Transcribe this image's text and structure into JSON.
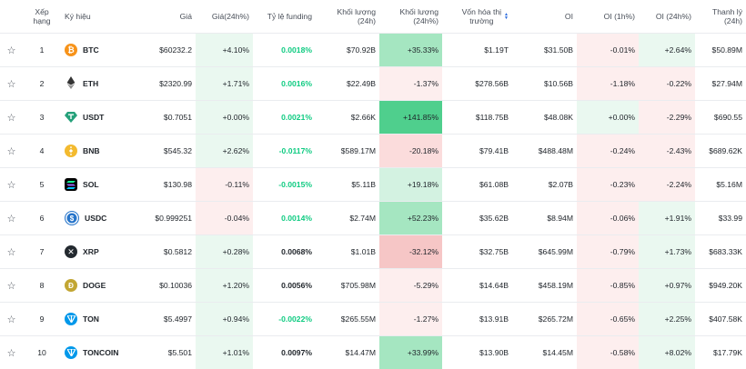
{
  "headers": {
    "rank": "Xếp hạng",
    "symbol": "Ký hiệu",
    "price": "Giá",
    "price_change": "Giá(24h%)",
    "funding": "Tỷ lệ funding",
    "volume": "Khối lượng (24h)",
    "volume_change": "Khối lượng (24h%)",
    "market_cap_line1": "Vốn hóa thị",
    "market_cap_line2": "trường",
    "oi": "OI",
    "oi_1h": "OI (1h%)",
    "oi_24h": "OI (24h%)",
    "liquidation": "Thanh lý (24h)"
  },
  "colors": {
    "positive": "#0ecb81",
    "negative": "#f6465d",
    "accent": "#2d6cdf"
  },
  "rows": [
    {
      "rank": "1",
      "symbol": "BTC",
      "icon": "btc-icon",
      "price": "$60232.2",
      "price_change": "+4.10%",
      "funding": "0.0018%",
      "volume": "$70.92B",
      "volume_change": "+35.33%",
      "market_cap": "$1.19T",
      "oi": "$31.50B",
      "oi_1h": "-0.01%",
      "oi_24h": "+2.64%",
      "liquidation": "$50.89M"
    },
    {
      "rank": "2",
      "symbol": "ETH",
      "icon": "eth-icon",
      "price": "$2320.99",
      "price_change": "+1.71%",
      "funding": "0.0016%",
      "volume": "$22.49B",
      "volume_change": "-1.37%",
      "market_cap": "$278.56B",
      "oi": "$10.56B",
      "oi_1h": "-1.18%",
      "oi_24h": "-0.22%",
      "liquidation": "$27.94M"
    },
    {
      "rank": "3",
      "symbol": "USDT",
      "icon": "usdt-icon",
      "price": "$0.7051",
      "price_change": "+0.00%",
      "funding": "0.0021%",
      "volume": "$2.66K",
      "volume_change": "+141.85%",
      "market_cap": "$118.75B",
      "oi": "$48.08K",
      "oi_1h": "+0.00%",
      "oi_24h": "-2.29%",
      "liquidation": "$690.55"
    },
    {
      "rank": "4",
      "symbol": "BNB",
      "icon": "bnb-icon",
      "price": "$545.32",
      "price_change": "+2.62%",
      "funding": "-0.0117%",
      "volume": "$589.17M",
      "volume_change": "-20.18%",
      "market_cap": "$79.41B",
      "oi": "$488.48M",
      "oi_1h": "-0.24%",
      "oi_24h": "-2.43%",
      "liquidation": "$689.62K"
    },
    {
      "rank": "5",
      "symbol": "SOL",
      "icon": "sol-icon",
      "price": "$130.98",
      "price_change": "-0.11%",
      "funding": "-0.0015%",
      "volume": "$5.11B",
      "volume_change": "+19.18%",
      "market_cap": "$61.08B",
      "oi": "$2.07B",
      "oi_1h": "-0.23%",
      "oi_24h": "-2.24%",
      "liquidation": "$5.16M"
    },
    {
      "rank": "6",
      "symbol": "USDC",
      "icon": "usdc-icon",
      "price": "$0.999251",
      "price_change": "-0.04%",
      "funding": "0.0014%",
      "volume": "$2.74M",
      "volume_change": "+52.23%",
      "market_cap": "$35.62B",
      "oi": "$8.94M",
      "oi_1h": "-0.06%",
      "oi_24h": "+1.91%",
      "liquidation": "$33.99"
    },
    {
      "rank": "7",
      "symbol": "XRP",
      "icon": "xrp-icon",
      "price": "$0.5812",
      "price_change": "+0.28%",
      "funding": "0.0068%",
      "volume": "$1.01B",
      "volume_change": "-32.12%",
      "market_cap": "$32.75B",
      "oi": "$645.99M",
      "oi_1h": "-0.79%",
      "oi_24h": "+1.73%",
      "liquidation": "$683.33K"
    },
    {
      "rank": "8",
      "symbol": "DOGE",
      "icon": "doge-icon",
      "price": "$0.10036",
      "price_change": "+1.20%",
      "funding": "0.0056%",
      "volume": "$705.98M",
      "volume_change": "-5.29%",
      "market_cap": "$14.64B",
      "oi": "$458.19M",
      "oi_1h": "-0.85%",
      "oi_24h": "+0.97%",
      "liquidation": "$949.20K"
    },
    {
      "rank": "9",
      "symbol": "TON",
      "icon": "ton-icon",
      "price": "$5.4997",
      "price_change": "+0.94%",
      "funding": "-0.0022%",
      "volume": "$265.55M",
      "volume_change": "-1.27%",
      "market_cap": "$13.91B",
      "oi": "$265.72M",
      "oi_1h": "-0.65%",
      "oi_24h": "+2.25%",
      "liquidation": "$407.58K"
    },
    {
      "rank": "10",
      "symbol": "TONCOIN",
      "icon": "ton-icon",
      "price": "$5.501",
      "price_change": "+1.01%",
      "funding": "0.0097%",
      "volume": "$14.47M",
      "volume_change": "+33.99%",
      "market_cap": "$13.90B",
      "oi": "$14.45M",
      "oi_1h": "-0.58%",
      "oi_24h": "+8.02%",
      "liquidation": "$17.79K"
    }
  ]
}
